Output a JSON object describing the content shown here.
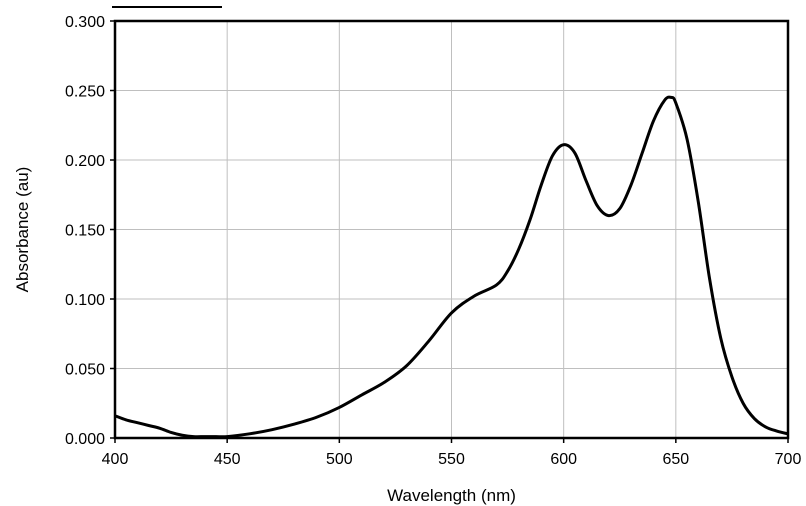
{
  "chart_data": {
    "type": "line",
    "title": "",
    "xlabel": "Wavelength (nm)",
    "ylabel": "Absorbance (au)",
    "xlim": [
      400,
      700
    ],
    "ylim": [
      0,
      0.3
    ],
    "x_ticks": [
      400,
      450,
      500,
      550,
      600,
      650,
      700
    ],
    "x_tick_labels": [
      "400",
      "450",
      "500",
      "550",
      "600",
      "650",
      "700"
    ],
    "y_ticks": [
      0,
      0.05,
      0.1,
      0.15,
      0.2,
      0.25,
      0.3
    ],
    "y_tick_labels": [
      "0.000",
      "0.050",
      "0.100",
      "0.150",
      "0.200",
      "0.250",
      "0.300"
    ],
    "grid": true,
    "line_color": "#000000",
    "series": [
      {
        "x": [
          400,
          405,
          410,
          415,
          420,
          425,
          430,
          435,
          440,
          445,
          450,
          460,
          470,
          480,
          490,
          500,
          510,
          520,
          530,
          540,
          550,
          560,
          570,
          575,
          580,
          585,
          590,
          595,
          600,
          605,
          610,
          615,
          620,
          625,
          630,
          635,
          640,
          645,
          648,
          650,
          655,
          660,
          665,
          670,
          675,
          680,
          685,
          690,
          695,
          700
        ],
        "y": [
          0.016,
          0.013,
          0.011,
          0.009,
          0.007,
          0.004,
          0.002,
          0.001,
          0.001,
          0.001,
          0.001,
          0.003,
          0.006,
          0.01,
          0.015,
          0.022,
          0.031,
          0.04,
          0.052,
          0.07,
          0.09,
          0.102,
          0.11,
          0.12,
          0.136,
          0.157,
          0.182,
          0.203,
          0.211,
          0.205,
          0.185,
          0.167,
          0.16,
          0.165,
          0.182,
          0.205,
          0.228,
          0.243,
          0.245,
          0.241,
          0.215,
          0.17,
          0.115,
          0.072,
          0.044,
          0.025,
          0.014,
          0.008,
          0.005,
          0.003
        ]
      }
    ]
  }
}
